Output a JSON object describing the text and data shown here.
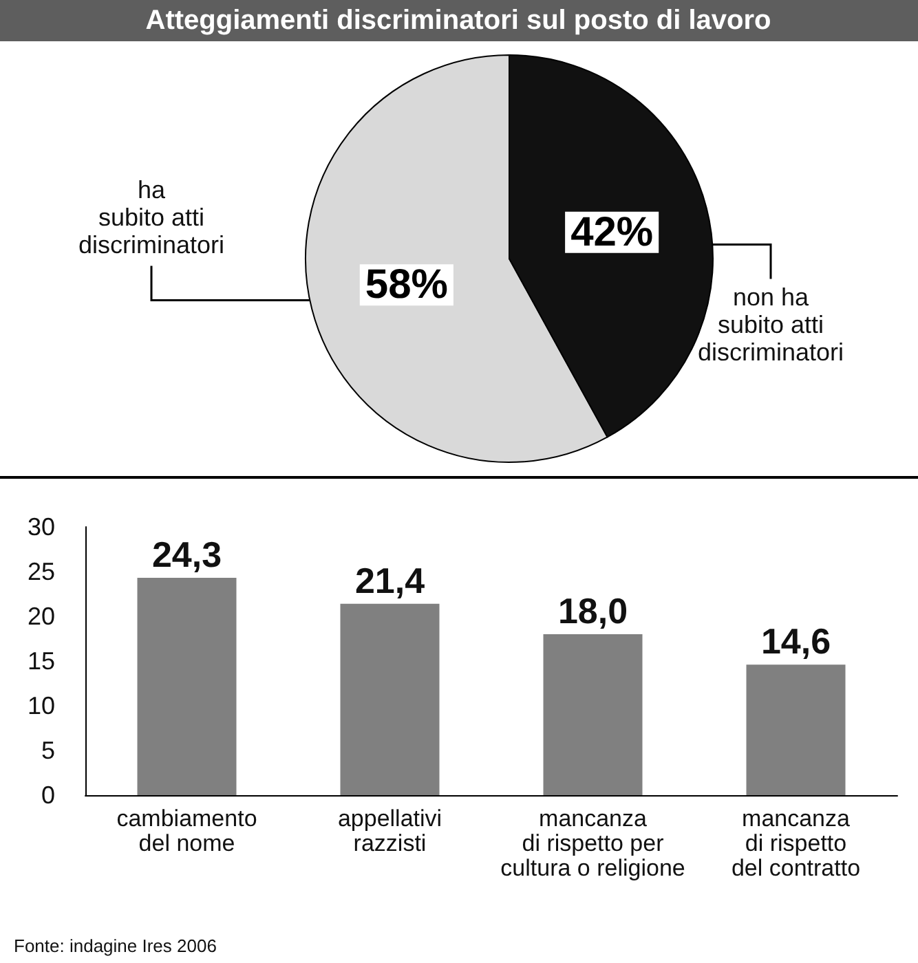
{
  "chart_data": [
    {
      "type": "pie",
      "title": "Atteggiamenti discriminatori sul posto di lavoro",
      "categories": [
        "ha\nsubito atti\ndiscriminatori",
        "non ha\nsubito atti\ndiscriminatori"
      ],
      "values": [
        58,
        42
      ],
      "value_labels": [
        "58%",
        "42%"
      ],
      "colors": [
        "#d9d9d9",
        "#111111"
      ]
    },
    {
      "type": "bar",
      "categories": [
        "cambiamento\ndel nome",
        "appellativi\nrazzisti",
        "mancanza\ndi rispetto per\ncultura o religione",
        "mancanza\ndi rispetto\ndel contratto"
      ],
      "values": [
        24.3,
        21.4,
        18.0,
        14.6
      ],
      "value_labels": [
        "24,3",
        "21,4",
        "18,0",
        "14,6"
      ],
      "color": "#808080",
      "ylim": [
        0,
        30
      ],
      "yticks": [
        0,
        5,
        10,
        15,
        20,
        25,
        30
      ],
      "grid": false,
      "annotations": [
        "Fonte: indagine Ires 2006"
      ]
    }
  ]
}
